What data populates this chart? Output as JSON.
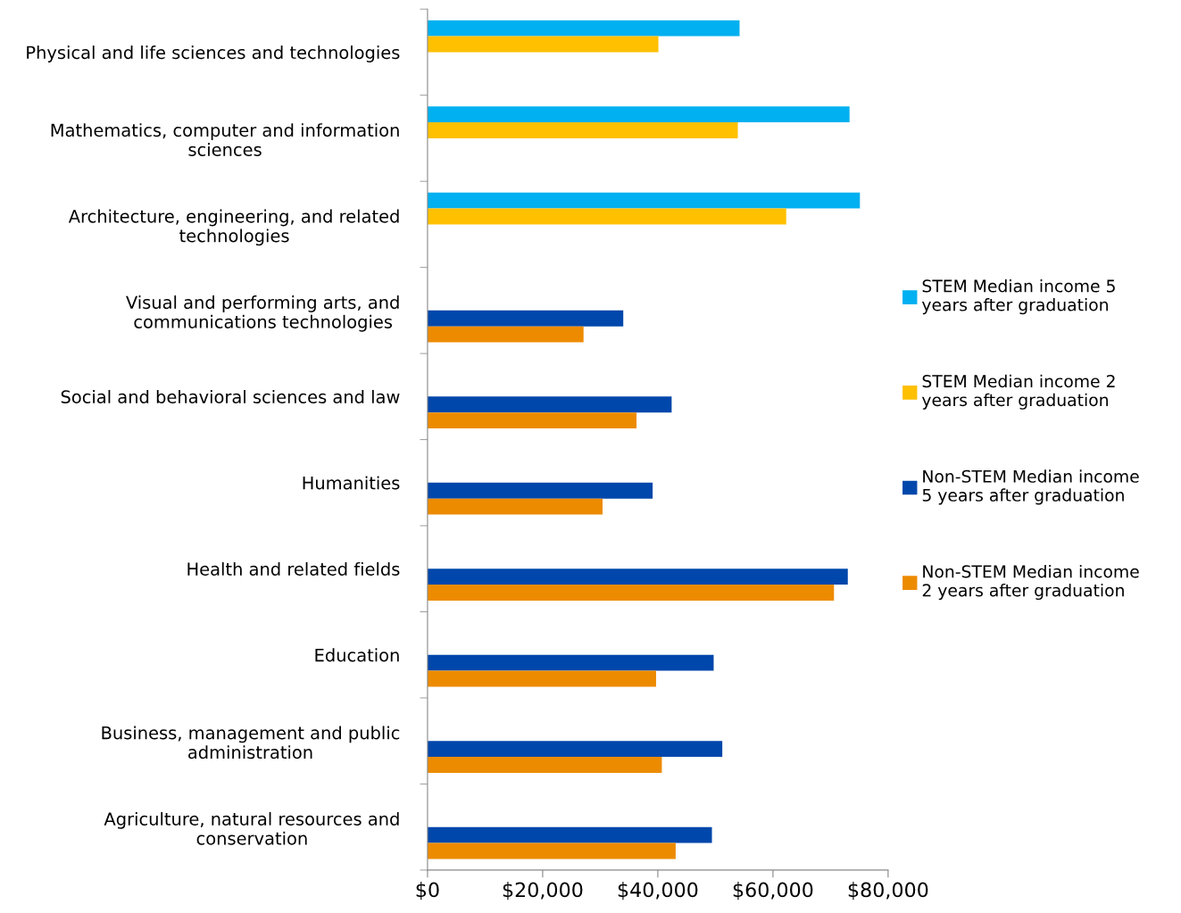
{
  "chart_data": {
    "type": "bar",
    "orientation": "horizontal",
    "categories": [
      "Physical and life sciences and technologies",
      "Mathematics, computer and information\nsciences",
      "Architecture, engineering, and related\ntechnologies",
      "Visual and performing arts, and\ncommunications technologies",
      "Social and behavioral sciences and law",
      "Humanities",
      "Health and related fields",
      "Education",
      "Business, management and public\nadministration",
      "Agriculture, natural resources and\nconservation"
    ],
    "series": [
      {
        "name": "STEM Median income 5\nyears after graduation",
        "color": "#00b0f0",
        "values": [
          54200,
          73300,
          75100,
          null,
          null,
          null,
          null,
          null,
          null,
          null
        ]
      },
      {
        "name": "STEM Median income 2\nyears after graduation",
        "color": "#ffc000",
        "values": [
          40100,
          53900,
          62300,
          null,
          null,
          null,
          null,
          null,
          null,
          null
        ]
      },
      {
        "name": "Non-STEM Median income\n5 years after graduation",
        "color": "#0047ab",
        "values": [
          null,
          null,
          null,
          34000,
          42400,
          39100,
          73000,
          49700,
          51200,
          49400
        ]
      },
      {
        "name": "Non-STEM Median income\n2 years after graduation",
        "color": "#ed8b00",
        "values": [
          null,
          null,
          null,
          27100,
          36300,
          30400,
          70600,
          39700,
          40700,
          43100
        ]
      }
    ],
    "xlim": [
      0,
      80000
    ],
    "xticks": [
      {
        "value": 0,
        "label": "$0"
      },
      {
        "value": 20000,
        "label": "$20,000"
      },
      {
        "value": 40000,
        "label": "$40,000"
      },
      {
        "value": 60000,
        "label": "$60,000"
      },
      {
        "value": 80000,
        "label": "$80,000"
      }
    ],
    "grid": false,
    "legend": "right"
  }
}
